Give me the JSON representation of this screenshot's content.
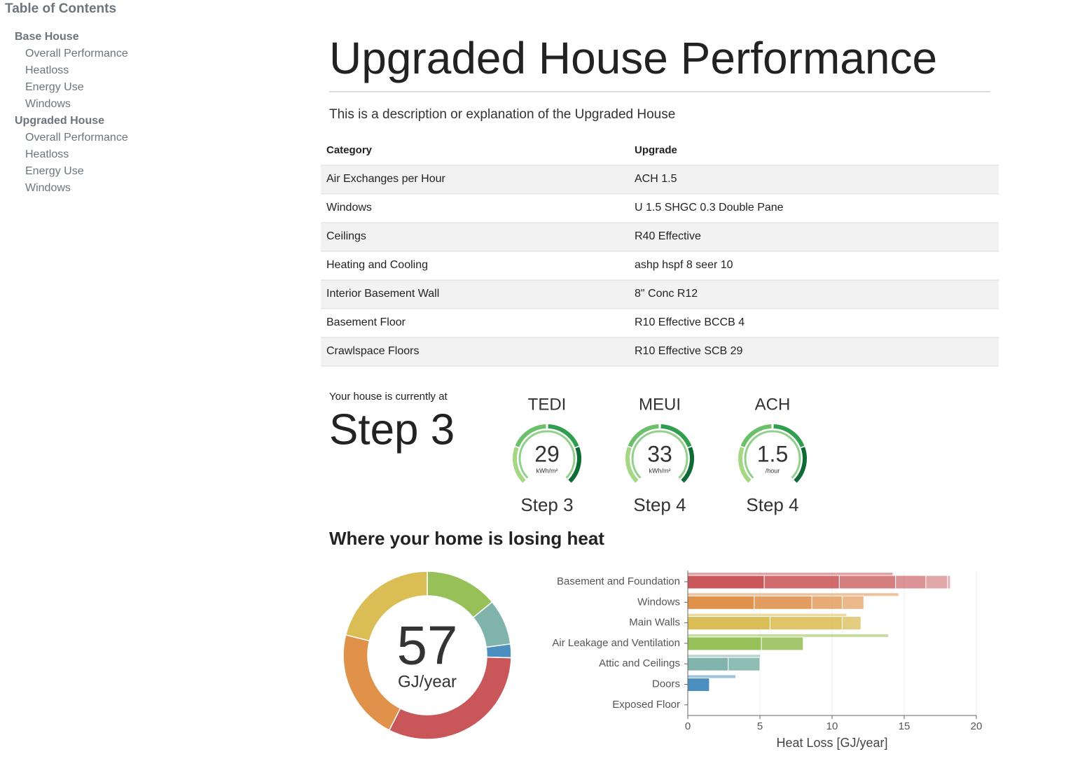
{
  "toc": {
    "title": "Table of Contents",
    "sections": [
      {
        "label": "Base House",
        "items": [
          "Overall Performance",
          "Heatloss",
          "Energy Use",
          "Windows"
        ]
      },
      {
        "label": "Upgraded House",
        "items": [
          "Overall Performance",
          "Heatloss",
          "Energy Use",
          "Windows"
        ]
      }
    ]
  },
  "header": {
    "title": "Upgraded House Performance",
    "description": "This is a description or explanation of the Upgraded House"
  },
  "table": {
    "columns": [
      "Category",
      "Upgrade"
    ],
    "rows": [
      [
        "Air Exchanges per Hour",
        "ACH 1.5"
      ],
      [
        "Windows",
        "U 1.5 SHGC 0.3 Double Pane"
      ],
      [
        "Ceilings",
        "R40 Effective"
      ],
      [
        "Heating and Cooling",
        "ashp hspf 8 seer 10"
      ],
      [
        "Interior Basement Wall",
        "8\" Conc R12"
      ],
      [
        "Basement Floor",
        "R10 Effective BCCB 4"
      ],
      [
        "Crawlspace Floors",
        "R10 Effective SCB 29"
      ]
    ]
  },
  "status": {
    "intro": "Your house is currently at",
    "step": "Step 3"
  },
  "gauges": [
    {
      "name": "TEDI",
      "value": 29,
      "unit": "kWh/m²",
      "step": "Step 3"
    },
    {
      "name": "MEUI",
      "value": 33,
      "unit": "kWh/m²",
      "step": "Step 4"
    },
    {
      "name": "ACH",
      "value": 1.5,
      "unit": "/hour",
      "step": "Step 4"
    }
  ],
  "section_title": "Where your home is losing heat",
  "chart_data": [
    {
      "type": "pie",
      "total": 57,
      "unit": "GJ/year",
      "values": [
        8.0,
        5.0,
        1.5,
        0,
        18.2,
        12.2,
        12.0
      ],
      "colors": [
        "#97c058",
        "#81b3ad",
        "#4a8fc0",
        "#999999",
        "#c9575a",
        "#e0914a",
        "#dbbd55"
      ]
    },
    {
      "type": "hbar-stacked",
      "xlabel": "Heat Loss [GJ/year]",
      "categories": [
        "Basement and Foundation",
        "Windows",
        "Main Walls",
        "Air Leakage and Ventilation",
        "Attic and Ceilings",
        "Doors",
        "Exposed Floor"
      ],
      "segments": [
        [
          5.3,
          5.2,
          3.9,
          2.1,
          1.5,
          0.2
        ],
        [
          4.6,
          4.0,
          2.1,
          1.5
        ],
        [
          5.7,
          5.0,
          1.3
        ],
        [
          5.1,
          2.9
        ],
        [
          2.8,
          2.2
        ],
        [
          1.5
        ],
        [
          0
        ]
      ],
      "comparison": [
        14.2,
        14.6,
        11.0,
        13.9,
        5.0,
        3.3,
        0
      ],
      "colors": [
        "#c9575a",
        "#e0914a",
        "#dbbd55",
        "#97c058",
        "#81b3ad",
        "#4a8fc0",
        "#999999"
      ],
      "xlim": [
        0,
        20
      ],
      "xticks": [
        0,
        5,
        10,
        15,
        20
      ],
      "grid": true
    }
  ]
}
